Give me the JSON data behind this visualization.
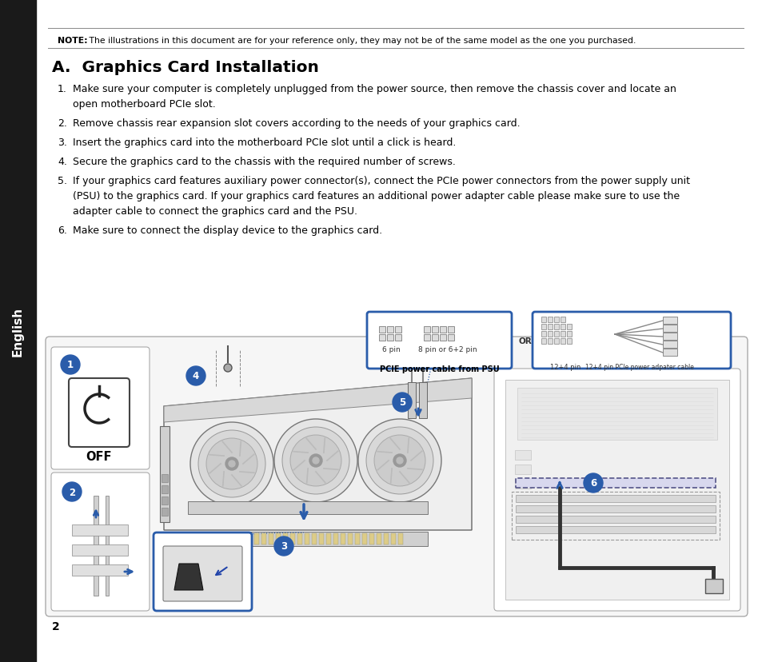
{
  "page_bg": "#ffffff",
  "sidebar_bg": "#1a1a1a",
  "sidebar_text": "English",
  "sidebar_text_color": "#ffffff",
  "note_bold": "NOTE:",
  "note_rest": " The illustrations in this document are for your reference only, they may not be of the same model as the one you purchased.",
  "title": "A.  Graphics Card Installation",
  "step1_num": "1.",
  "step1_a": "Make sure your computer is completely unplugged from the power source, then remove the chassis cover and locate an",
  "step1_b": "open motherboard PCIe slot.",
  "step2_num": "2.",
  "step2": "Remove chassis rear expansion slot covers according to the needs of your graphics card.",
  "step3_num": "3.",
  "step3": "Insert the graphics card into the motherboard PCIe slot until a click is heard.",
  "step4_num": "4.",
  "step4": "Secure the graphics card to the chassis with the required number of screws.",
  "step5_num": "5.",
  "step5_a": "If your graphics card features auxiliary power connector(s), connect the PCIe power connectors from the power supply unit",
  "step5_b": "(PSU) to the graphics card. If your graphics card features an additional power adapter cable please make sure to use the",
  "step5_c": "adapter cable to connect the graphics card and the PSU.",
  "step6_num": "6.",
  "step6": "Make sure to connect the display device to the graphics card.",
  "page_number": "2",
  "blue_color": "#2a5caa",
  "blue_border": "#2a5caa",
  "circle_text_color": "#ffffff",
  "label_6pin": "6 pin",
  "label_8pin": "8 pin or 6+2 pin",
  "label_pcie": "PCIE power cable from PSU",
  "label_12p4": "12+4 pin",
  "label_12p4cable": "12+4 pin PCIe power adpater cable",
  "label_or": "OR",
  "label_off": "OFF"
}
